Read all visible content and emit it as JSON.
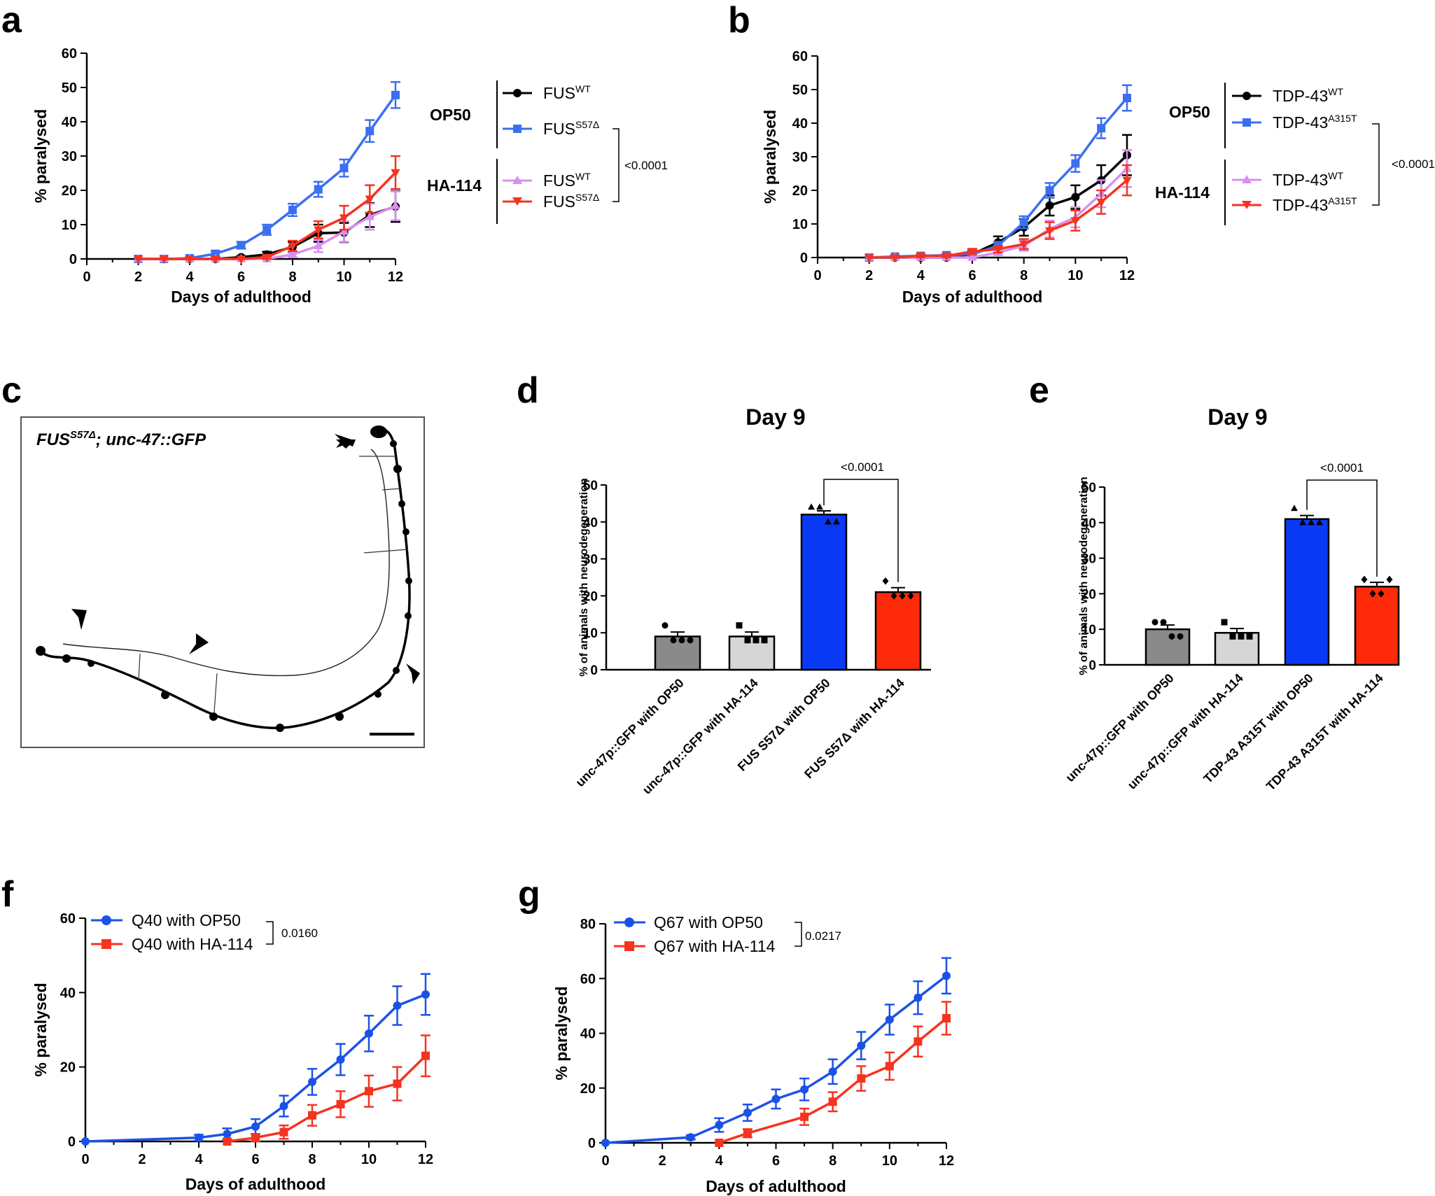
{
  "panels": {
    "a": "a",
    "b": "b",
    "c": "c",
    "d": "d",
    "e": "e",
    "f": "f",
    "g": "g"
  },
  "groups": {
    "op50": "OP50",
    "ha114": "HA-114"
  },
  "labels": {
    "paralysed": "% paralysed",
    "days": "Days of adulthood",
    "day9": "Day 9",
    "neuro": "% of animals with neurodegeneration"
  },
  "legend": {
    "fus_wt": "FUS",
    "fus_wt_sup": "WT",
    "fus_mut": "FUS",
    "fus_mut_sup": "S57Δ",
    "tdp_wt": "TDP-43",
    "tdp_wt_sup": "WT",
    "tdp_mut": "TDP-43",
    "tdp_mut_sup": "A315T",
    "q40_op50": "Q40 with OP50",
    "q40_ha": "Q40 with HA-114",
    "q67_op50": "Q67 with OP50",
    "q67_ha": "Q67 with HA-114"
  },
  "stats": {
    "a": "<0.0001",
    "b": "<0.0001",
    "d": "<0.0001",
    "e": "<0.0001",
    "f": "0.0160",
    "g": "0.0217"
  },
  "microscopy": {
    "genotype_a": "FUS",
    "genotype_sup": "S57Δ",
    "genotype_b": "; unc-47::GFP"
  },
  "colors": {
    "black": "#000000",
    "blue": "#3b6ff0",
    "blue_dark": "#1a52e8",
    "violet": "#d98ff0",
    "red": "#f5331f",
    "bar_dark": "#8a8a8a",
    "bar_light": "#d6d6d6",
    "bar_blue": "#0a39f5",
    "bar_red": "#ff2a0a"
  },
  "chart_data": [
    {
      "id": "a",
      "type": "line",
      "xlabel": "Days of adulthood",
      "ylabel": "% paralysed",
      "xlim": [
        0,
        12
      ],
      "ylim": [
        0,
        60
      ],
      "xticks": [
        0,
        2,
        4,
        6,
        8,
        10,
        12
      ],
      "yticks": [
        0,
        10,
        20,
        30,
        40,
        50,
        60
      ],
      "series": [
        {
          "name": "FUS WT (OP50)",
          "color": "#000000",
          "marker": "circle",
          "x": [
            2,
            3,
            4,
            5,
            6,
            7,
            8,
            9,
            10,
            11,
            12
          ],
          "y": [
            0,
            0,
            0,
            0,
            0.5,
            1.3,
            3.5,
            7.5,
            7.7,
            12.8,
            15.3
          ],
          "err": [
            0,
            0,
            0,
            0,
            0.4,
            0.8,
            1.5,
            2.5,
            2.8,
            3.5,
            4.5
          ]
        },
        {
          "name": "FUS S57Δ (OP50)",
          "color": "#3b6ff0",
          "marker": "square",
          "x": [
            2,
            3,
            4,
            5,
            6,
            7,
            8,
            9,
            10,
            11,
            12
          ],
          "y": [
            0,
            0,
            0.2,
            1.5,
            4,
            8.5,
            14.3,
            20.3,
            26.5,
            37.3,
            47.8
          ],
          "err": [
            0,
            0,
            0.3,
            0.8,
            1,
            1.5,
            1.8,
            2.2,
            2.5,
            3.2,
            3.8
          ]
        },
        {
          "name": "FUS WT (HA-114)",
          "color": "#d98ff0",
          "marker": "triangle-up",
          "x": [
            2,
            3,
            4,
            5,
            6,
            7,
            8,
            9,
            10,
            11,
            12
          ],
          "y": [
            0,
            0,
            0,
            0,
            0,
            0,
            1.3,
            3.8,
            8,
            12.3,
            15.5
          ],
          "err": [
            0,
            0,
            0,
            0,
            0,
            0,
            0.8,
            1.8,
            3,
            3.8,
            4.2
          ]
        },
        {
          "name": "FUS S57Δ (HA-114)",
          "color": "#f5331f",
          "marker": "triangle-down",
          "x": [
            2,
            3,
            4,
            5,
            6,
            7,
            8,
            9,
            10,
            11,
            12
          ],
          "y": [
            0,
            0,
            0,
            0,
            0,
            0.5,
            3.8,
            8.5,
            12,
            17.5,
            25.2
          ],
          "err": [
            0,
            0,
            0,
            0,
            0,
            0.5,
            1.5,
            2.5,
            3.5,
            4,
            4.8
          ]
        }
      ]
    },
    {
      "id": "b",
      "type": "line",
      "xlabel": "Days of adulthood",
      "ylabel": "% paralysed",
      "xlim": [
        0,
        12
      ],
      "ylim": [
        0,
        60
      ],
      "xticks": [
        0,
        2,
        4,
        6,
        8,
        10,
        12
      ],
      "yticks": [
        0,
        10,
        20,
        30,
        40,
        50,
        60
      ],
      "series": [
        {
          "name": "TDP-43 WT (OP50)",
          "color": "#000000",
          "marker": "circle",
          "x": [
            2,
            3,
            4,
            5,
            6,
            7,
            8,
            9,
            10,
            11,
            12
          ],
          "y": [
            0,
            0,
            0,
            0,
            1,
            4.5,
            9,
            15.5,
            18,
            23,
            30.5
          ],
          "err": [
            0,
            0,
            0.3,
            0.3,
            1,
            1.8,
            2.5,
            3,
            3.5,
            4.5,
            6
          ]
        },
        {
          "name": "TDP-43 A315T (OP50)",
          "color": "#3b6ff0",
          "marker": "square",
          "x": [
            2,
            3,
            4,
            5,
            6,
            7,
            8,
            9,
            10,
            11,
            12
          ],
          "y": [
            0,
            0.3,
            0.5,
            0.7,
            1,
            3.5,
            10.5,
            20,
            28,
            38.5,
            47.5
          ],
          "err": [
            0,
            0.3,
            0.4,
            0.4,
            0.6,
            1.2,
            1.8,
            2.2,
            2.5,
            3,
            3.8
          ]
        },
        {
          "name": "TDP-43 WT (HA-114)",
          "color": "#d98ff0",
          "marker": "triangle-up",
          "x": [
            2,
            3,
            4,
            5,
            6,
            7,
            8,
            9,
            10,
            11,
            12
          ],
          "y": [
            0,
            0,
            0,
            0,
            0,
            1.5,
            3.5,
            8.5,
            12,
            19,
            26.5
          ],
          "err": [
            0,
            0,
            0,
            0,
            0,
            0.8,
            1.5,
            2.5,
            3,
            4,
            5.5
          ]
        },
        {
          "name": "TDP-43 A315T (HA-114)",
          "color": "#f5331f",
          "marker": "triangle-down",
          "x": [
            2,
            3,
            4,
            5,
            6,
            7,
            8,
            9,
            10,
            11,
            12
          ],
          "y": [
            0,
            0,
            0.5,
            0.5,
            1.8,
            2.5,
            4,
            8,
            11,
            16.5,
            23
          ],
          "err": [
            0,
            0,
            0.4,
            0.4,
            0.8,
            1,
            1.5,
            2.5,
            3,
            3.5,
            4.5
          ]
        }
      ]
    },
    {
      "id": "d",
      "type": "bar",
      "title": "Day 9",
      "ylabel": "% of animals with neurodegeneration",
      "ylim": [
        0,
        50
      ],
      "yticks": [
        0,
        10,
        20,
        30,
        40,
        50
      ],
      "categories": [
        "unc-47p::GFP with OP50",
        "unc-47p::GFP with HA-114",
        "FUS S57Δ with OP50",
        "FUS S57Δ with HA-114"
      ],
      "values": [
        9,
        9,
        42,
        21
      ],
      "err": [
        1.2,
        1.2,
        1,
        1.2
      ],
      "points": [
        [
          12,
          8,
          8,
          8
        ],
        [
          12,
          8,
          8,
          8
        ],
        [
          44,
          44,
          40,
          40
        ],
        [
          24,
          20,
          20,
          20
        ]
      ],
      "markers": [
        "circle",
        "square",
        "triangle-up",
        "diamond"
      ],
      "colors": [
        "#8a8a8a",
        "#d6d6d6",
        "#0a39f5",
        "#ff2a0a"
      ]
    },
    {
      "id": "e",
      "type": "bar",
      "title": "Day 9",
      "ylabel": "% of animals with neurodegeneration",
      "ylim": [
        0,
        50
      ],
      "yticks": [
        0,
        10,
        20,
        30,
        40,
        50
      ],
      "categories": [
        "unc-47p::GFP with OP50",
        "unc-47p::GFP with HA-114",
        "TDP-43 A315T with OP50",
        "TDP-43 A315T with HA-114"
      ],
      "values": [
        10,
        9,
        41,
        22
      ],
      "err": [
        1.2,
        1.2,
        1,
        1.2
      ],
      "points": [
        [
          12,
          12,
          8,
          8
        ],
        [
          12,
          8,
          8,
          8
        ],
        [
          44,
          40,
          40,
          40
        ],
        [
          24,
          20,
          20,
          24
        ]
      ],
      "markers": [
        "circle",
        "square",
        "triangle-up",
        "diamond"
      ],
      "colors": [
        "#8a8a8a",
        "#d6d6d6",
        "#0a39f5",
        "#ff2a0a"
      ]
    },
    {
      "id": "f",
      "type": "line",
      "xlabel": "Days of adulthood",
      "ylabel": "% paralysed",
      "xlim": [
        0,
        12
      ],
      "ylim": [
        0,
        60
      ],
      "xticks": [
        0,
        2,
        4,
        6,
        8,
        10,
        12
      ],
      "yticks": [
        0,
        20,
        40,
        60
      ],
      "series": [
        {
          "name": "Q40 with OP50",
          "color": "#1a52e8",
          "marker": "circle",
          "x": [
            0,
            4,
            5,
            6,
            7,
            8,
            9,
            10,
            11,
            12
          ],
          "y": [
            0,
            1,
            2,
            4,
            9.5,
            16,
            22,
            29,
            36.5,
            39.5
          ],
          "err": [
            0,
            0.8,
            1.5,
            2,
            2.8,
            3.5,
            4.2,
            4.8,
            5.2,
            5.5
          ]
        },
        {
          "name": "Q40 with HA-114",
          "color": "#f5331f",
          "marker": "square",
          "x": [
            5,
            6,
            7,
            8,
            9,
            10,
            11,
            12
          ],
          "y": [
            0,
            1,
            2.5,
            7,
            10,
            13.5,
            15.5,
            23
          ],
          "err": [
            0,
            1,
            1.8,
            2.8,
            3.5,
            4.2,
            4.5,
            5.5
          ]
        }
      ]
    },
    {
      "id": "g",
      "type": "line",
      "xlabel": "Days of adulthood",
      "ylabel": "% paralysed",
      "xlim": [
        0,
        12
      ],
      "ylim": [
        0,
        80
      ],
      "xticks": [
        0,
        2,
        4,
        6,
        8,
        10,
        12
      ],
      "yticks": [
        0,
        20,
        40,
        60,
        80
      ],
      "series": [
        {
          "name": "Q67 with OP50",
          "color": "#1a52e8",
          "marker": "circle",
          "x": [
            0,
            3,
            4,
            5,
            6,
            7,
            8,
            9,
            10,
            11,
            12
          ],
          "y": [
            0,
            2,
            6.5,
            11,
            16,
            19.5,
            26,
            35.5,
            45,
            53,
            61
          ],
          "err": [
            0,
            0.8,
            2.5,
            3,
            3.5,
            4,
            4.5,
            5,
            5.5,
            6,
            6.5
          ]
        },
        {
          "name": "Q67 with HA-114",
          "color": "#f5331f",
          "marker": "square",
          "x": [
            4,
            5,
            7,
            8,
            9,
            10,
            11,
            12
          ],
          "y": [
            0,
            3.5,
            9.5,
            15,
            23.5,
            28,
            37,
            45.5
          ],
          "err": [
            0,
            1.5,
            3,
            3.5,
            4.5,
            5,
            5.5,
            6
          ]
        }
      ]
    }
  ]
}
